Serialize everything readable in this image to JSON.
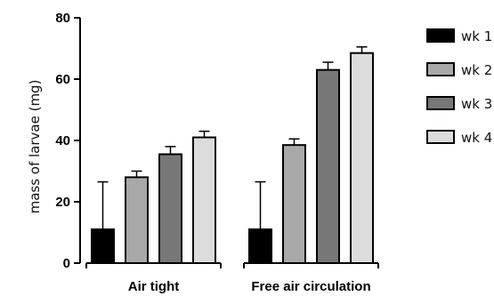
{
  "chart_data": {
    "type": "bar",
    "ylabel": "mass of larvae (mg)",
    "xlabel": "",
    "ylim": [
      0,
      80
    ],
    "yticks": [
      0,
      20,
      40,
      60,
      80
    ],
    "grid": false,
    "legend_position": "right",
    "categories": [
      "Air tight",
      "Free air circulation"
    ],
    "series": [
      {
        "name": "wk 1",
        "color": "#000000",
        "values": [
          11,
          11
        ],
        "errors": [
          15.5,
          15.5
        ]
      },
      {
        "name": "wk 2",
        "color": "#a9a9a9",
        "values": [
          28,
          38.5
        ],
        "errors": [
          2,
          2
        ]
      },
      {
        "name": "wk 3",
        "color": "#777777",
        "values": [
          35.5,
          63
        ],
        "errors": [
          2.5,
          2.5
        ]
      },
      {
        "name": "wk 4",
        "color": "#dcdcdc",
        "values": [
          41,
          68.5
        ],
        "errors": [
          2,
          2
        ]
      }
    ]
  }
}
